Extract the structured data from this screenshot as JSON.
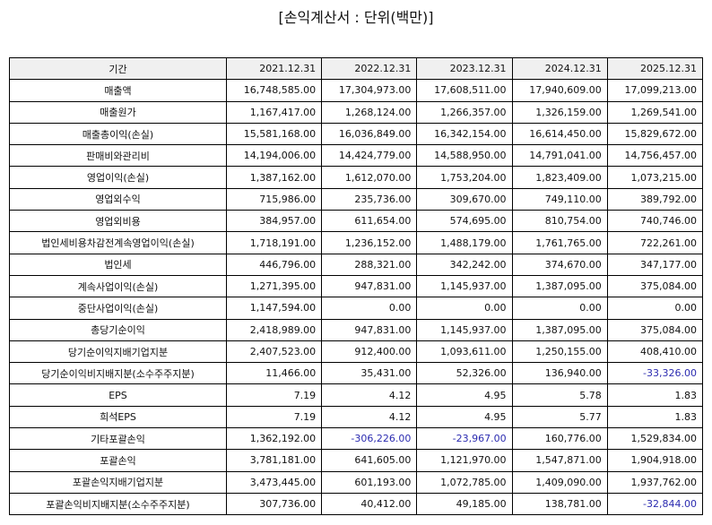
{
  "title": "[손익계산서 : 단위(백만)]",
  "table": {
    "header": [
      "기간",
      "2021.12.31",
      "2022.12.31",
      "2023.12.31",
      "2024.12.31",
      "2025.12.31"
    ],
    "rows": [
      [
        "매출액",
        "16,748,585.00",
        "17,304,973.00",
        "17,608,511.00",
        "17,940,609.00",
        "17,099,213.00"
      ],
      [
        "매출원가",
        "1,167,417.00",
        "1,268,124.00",
        "1,266,357.00",
        "1,326,159.00",
        "1,269,541.00"
      ],
      [
        "매출총이익(손실)",
        "15,581,168.00",
        "16,036,849.00",
        "16,342,154.00",
        "16,614,450.00",
        "15,829,672.00"
      ],
      [
        "판매비와관리비",
        "14,194,006.00",
        "14,424,779.00",
        "14,588,950.00",
        "14,791,041.00",
        "14,756,457.00"
      ],
      [
        "영업이익(손실)",
        "1,387,162.00",
        "1,612,070.00",
        "1,753,204.00",
        "1,823,409.00",
        "1,073,215.00"
      ],
      [
        "영업외수익",
        "715,986.00",
        "235,736.00",
        "309,670.00",
        "749,110.00",
        "389,792.00"
      ],
      [
        "영업외비용",
        "384,957.00",
        "611,654.00",
        "574,695.00",
        "810,754.00",
        "740,746.00"
      ],
      [
        "법인세비용차감전계속영업이익(손실)",
        "1,718,191.00",
        "1,236,152.00",
        "1,488,179.00",
        "1,761,765.00",
        "722,261.00"
      ],
      [
        "법인세",
        "446,796.00",
        "288,321.00",
        "342,242.00",
        "374,670.00",
        "347,177.00"
      ],
      [
        "계속사업이익(손실)",
        "1,271,395.00",
        "947,831.00",
        "1,145,937.00",
        "1,387,095.00",
        "375,084.00"
      ],
      [
        "중단사업이익(손실)",
        "1,147,594.00",
        "0.00",
        "0.00",
        "0.00",
        "0.00"
      ],
      [
        "총당기순이익",
        "2,418,989.00",
        "947,831.00",
        "1,145,937.00",
        "1,387,095.00",
        "375,084.00"
      ],
      [
        "당기순이익지배기업지분",
        "2,407,523.00",
        "912,400.00",
        "1,093,611.00",
        "1,250,155.00",
        "408,410.00"
      ],
      [
        "당기순이익비지배지분(소수주주지분)",
        "11,466.00",
        "35,431.00",
        "52,326.00",
        "136,940.00",
        "-33,326.00"
      ],
      [
        "EPS",
        "7.19",
        "4.12",
        "4.95",
        "5.78",
        "1.83"
      ],
      [
        "희석EPS",
        "7.19",
        "4.12",
        "4.95",
        "5.77",
        "1.83"
      ],
      [
        "기타포괄손익",
        "1,362,192.00",
        "-306,226.00",
        "-23,967.00",
        "160,776.00",
        "1,529,834.00"
      ],
      [
        "포괄손익",
        "3,781,181.00",
        "641,605.00",
        "1,121,970.00",
        "1,547,871.00",
        "1,904,918.00"
      ],
      [
        "포괄손익지배기업지분",
        "3,473,445.00",
        "601,193.00",
        "1,072,785.00",
        "1,409,090.00",
        "1,937,762.00"
      ],
      [
        "포괄손익비지배지분(소수주주지분)",
        "307,736.00",
        "40,412.00",
        "49,185.00",
        "138,781.00",
        "-32,844.00"
      ]
    ]
  }
}
